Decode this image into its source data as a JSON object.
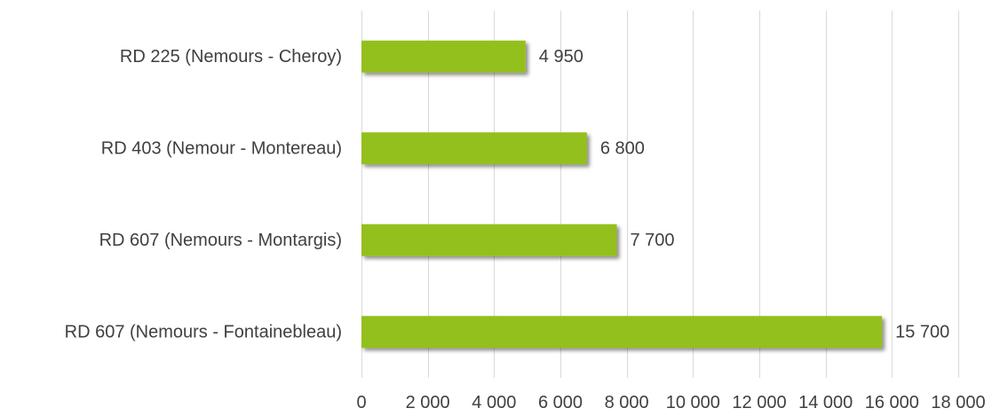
{
  "chart_data": {
    "type": "bar",
    "orientation": "horizontal",
    "title": "",
    "xlabel": "",
    "ylabel": "",
    "categories": [
      "RD 225 (Nemours - Cheroy)",
      "RD 403 (Nemour - Montereau)",
      "RD 607 (Nemours - Montargis)",
      "RD 607 (Nemours - Fontainebleau)"
    ],
    "values": [
      4950,
      6800,
      7700,
      15700
    ],
    "value_labels": [
      "4 950",
      "6 800",
      "7 700",
      "15 700"
    ],
    "xlim": [
      0,
      18000
    ],
    "x_ticks": [
      0,
      2000,
      4000,
      6000,
      8000,
      10000,
      12000,
      14000,
      16000,
      18000
    ],
    "x_tick_labels": [
      "0",
      "2 000",
      "4 000",
      "6 000",
      "8 000",
      "10 000",
      "12 000",
      "14 000",
      "16 000",
      "18 000"
    ],
    "grid": "vertical",
    "legend": "none",
    "colors": {
      "bar": "#93c01f",
      "gridline": "#d9d9d9",
      "text": "#404040",
      "shadow": "#b0b0b0"
    }
  }
}
